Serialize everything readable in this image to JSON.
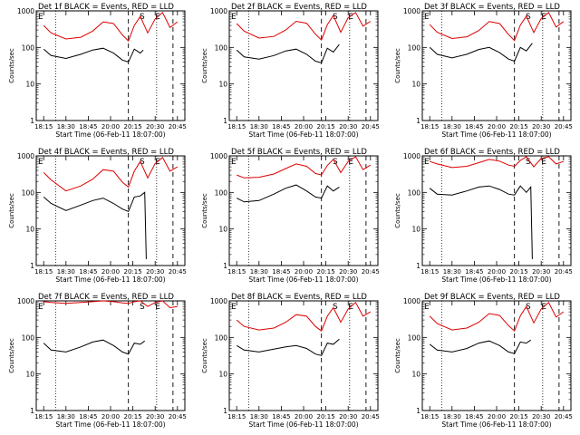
{
  "figure": {
    "ylabel": "Counts/sec",
    "xlabel": "Start Time (06-Feb-11 18:07:00)",
    "y_ticks": [
      "1",
      "10",
      "100",
      "1000"
    ],
    "x_ticks": [
      "18:15",
      "18:30",
      "18:45",
      "20:00",
      "20:15",
      "20:30",
      "20:45"
    ],
    "markers": {
      "E": "E",
      "S": "S"
    },
    "colors": {
      "events": "#000000",
      "lld": "#dd0000"
    }
  },
  "chart_data": [
    {
      "type": "line",
      "title": "Det 1f BLACK = Events, RED = LLD",
      "ylim": [
        1,
        1000
      ],
      "yscale": "log",
      "series": [
        {
          "name": "BLACK = Events",
          "color": "#000000",
          "x": [
            0.05,
            0.1,
            0.2,
            0.3,
            0.38,
            0.45,
            0.52,
            0.58,
            0.62,
            0.66,
            0.7,
            0.72
          ],
          "y": [
            90,
            60,
            50,
            65,
            85,
            95,
            70,
            45,
            40,
            90,
            70,
            85
          ]
        },
        {
          "name": "RED = LLD",
          "color": "#dd0000",
          "x": [
            0.05,
            0.1,
            0.2,
            0.3,
            0.38,
            0.45,
            0.52,
            0.58,
            0.62,
            0.66,
            0.7,
            0.75,
            0.8,
            0.85,
            0.9,
            0.95
          ],
          "y": [
            400,
            250,
            170,
            190,
            280,
            500,
            450,
            220,
            150,
            400,
            700,
            250,
            600,
            900,
            350,
            500
          ]
        }
      ]
    },
    {
      "type": "line",
      "title": "Det 2f BLACK = Events, RED = LLD",
      "ylim": [
        1,
        1000
      ],
      "yscale": "log",
      "series": [
        {
          "name": "BLACK = Events",
          "color": "#000000",
          "x": [
            0.05,
            0.1,
            0.2,
            0.3,
            0.38,
            0.45,
            0.52,
            0.58,
            0.62,
            0.66,
            0.7,
            0.74
          ],
          "y": [
            85,
            55,
            48,
            60,
            80,
            90,
            65,
            42,
            38,
            95,
            75,
            120
          ]
        },
        {
          "name": "RED = LLD",
          "color": "#dd0000",
          "x": [
            0.05,
            0.1,
            0.2,
            0.3,
            0.38,
            0.45,
            0.52,
            0.58,
            0.62,
            0.66,
            0.7,
            0.75,
            0.8,
            0.85,
            0.9,
            0.95
          ],
          "y": [
            450,
            280,
            180,
            200,
            300,
            520,
            460,
            230,
            160,
            420,
            750,
            260,
            650,
            900,
            380,
            520
          ]
        }
      ]
    },
    {
      "type": "line",
      "title": "Det 3f BLACK = Events, RED = LLD",
      "ylim": [
        1,
        1000
      ],
      "yscale": "log",
      "series": [
        {
          "name": "BLACK = Events",
          "color": "#000000",
          "x": [
            0.05,
            0.1,
            0.2,
            0.3,
            0.38,
            0.45,
            0.52,
            0.58,
            0.62,
            0.66,
            0.7,
            0.74
          ],
          "y": [
            100,
            65,
            52,
            65,
            88,
            100,
            72,
            48,
            42,
            100,
            80,
            130
          ]
        },
        {
          "name": "RED = LLD",
          "color": "#dd0000",
          "x": [
            0.05,
            0.1,
            0.2,
            0.3,
            0.38,
            0.45,
            0.52,
            0.58,
            0.62,
            0.66,
            0.7,
            0.75,
            0.8,
            0.85,
            0.9,
            0.95
          ],
          "y": [
            420,
            260,
            175,
            195,
            290,
            510,
            450,
            225,
            155,
            410,
            720,
            255,
            620,
            900,
            360,
            510
          ]
        }
      ]
    },
    {
      "type": "line",
      "title": "Det 4f BLACK = Events, RED = LLD",
      "ylim": [
        1,
        1000
      ],
      "yscale": "log",
      "series": [
        {
          "name": "BLACK = Events",
          "color": "#000000",
          "x": [
            0.05,
            0.1,
            0.2,
            0.3,
            0.38,
            0.45,
            0.52,
            0.58,
            0.62,
            0.66,
            0.7,
            0.73,
            0.74
          ],
          "y": [
            75,
            50,
            32,
            45,
            60,
            70,
            50,
            35,
            30,
            75,
            80,
            100,
            1.5
          ]
        },
        {
          "name": "RED = LLD",
          "color": "#dd0000",
          "x": [
            0.05,
            0.1,
            0.2,
            0.3,
            0.38,
            0.45,
            0.52,
            0.58,
            0.62,
            0.66,
            0.7,
            0.75,
            0.8,
            0.85,
            0.9,
            0.95
          ],
          "y": [
            350,
            220,
            110,
            150,
            230,
            420,
            380,
            190,
            140,
            380,
            700,
            250,
            620,
            900,
            380,
            500
          ]
        }
      ]
    },
    {
      "type": "line",
      "title": "Det 5f BLACK = Events, RED = LLD",
      "ylim": [
        1,
        1000
      ],
      "yscale": "log",
      "series": [
        {
          "name": "BLACK = Events",
          "color": "#000000",
          "x": [
            0.05,
            0.1,
            0.2,
            0.3,
            0.38,
            0.45,
            0.52,
            0.58,
            0.62,
            0.66,
            0.7,
            0.74
          ],
          "y": [
            70,
            55,
            60,
            90,
            130,
            160,
            110,
            75,
            70,
            150,
            110,
            140
          ]
        },
        {
          "name": "RED = LLD",
          "color": "#dd0000",
          "x": [
            0.05,
            0.1,
            0.2,
            0.3,
            0.38,
            0.45,
            0.52,
            0.58,
            0.62,
            0.66,
            0.7,
            0.75,
            0.8,
            0.85,
            0.9,
            0.95
          ],
          "y": [
            300,
            250,
            260,
            320,
            450,
            600,
            520,
            330,
            300,
            550,
            800,
            350,
            700,
            950,
            420,
            560
          ]
        }
      ]
    },
    {
      "type": "line",
      "title": "Det 6f BLACK = Events, RED = LLD",
      "ylim": [
        1,
        1000
      ],
      "yscale": "log",
      "series": [
        {
          "name": "BLACK = Events",
          "color": "#000000",
          "x": [
            0.05,
            0.1,
            0.2,
            0.3,
            0.38,
            0.45,
            0.52,
            0.58,
            0.62,
            0.66,
            0.7,
            0.73,
            0.74
          ],
          "y": [
            130,
            90,
            85,
            110,
            140,
            150,
            120,
            90,
            85,
            150,
            100,
            140,
            1.5
          ]
        },
        {
          "name": "RED = LLD",
          "color": "#dd0000",
          "x": [
            0.05,
            0.1,
            0.2,
            0.3,
            0.38,
            0.45,
            0.52,
            0.58,
            0.62,
            0.66,
            0.7,
            0.75,
            0.8,
            0.85,
            0.9,
            0.95
          ],
          "y": [
            700,
            600,
            480,
            520,
            650,
            800,
            720,
            560,
            520,
            750,
            950,
            500,
            850,
            950,
            600,
            700
          ]
        }
      ]
    },
    {
      "type": "line",
      "title": "Det 7f BLACK = Events, RED = LLD",
      "ylim": [
        1,
        1000
      ],
      "yscale": "log",
      "series": [
        {
          "name": "BLACK = Events",
          "color": "#000000",
          "x": [
            0.05,
            0.1,
            0.2,
            0.3,
            0.38,
            0.45,
            0.52,
            0.58,
            0.62,
            0.66,
            0.7,
            0.73
          ],
          "y": [
            70,
            45,
            40,
            55,
            75,
            85,
            60,
            40,
            35,
            70,
            65,
            80
          ]
        },
        {
          "name": "RED = LLD",
          "color": "#dd0000",
          "x": [
            0.05,
            0.1,
            0.2,
            0.3,
            0.38,
            0.45,
            0.52,
            0.58,
            0.62,
            0.66,
            0.7,
            0.75,
            0.8,
            0.85,
            0.9,
            0.95
          ],
          "y": [
            950,
            900,
            850,
            900,
            950,
            1000,
            950,
            880,
            850,
            950,
            1000,
            700,
            900,
            1000,
            650,
            700
          ]
        }
      ]
    },
    {
      "type": "line",
      "title": "Det 8f BLACK = Events, RED = LLD",
      "ylim": [
        1,
        1000
      ],
      "yscale": "log",
      "series": [
        {
          "name": "BLACK = Events",
          "color": "#000000",
          "x": [
            0.05,
            0.1,
            0.2,
            0.3,
            0.38,
            0.45,
            0.52,
            0.58,
            0.62,
            0.66,
            0.7,
            0.74
          ],
          "y": [
            60,
            45,
            40,
            48,
            55,
            60,
            50,
            35,
            32,
            70,
            65,
            90
          ]
        },
        {
          "name": "RED = LLD",
          "color": "#dd0000",
          "x": [
            0.05,
            0.1,
            0.2,
            0.3,
            0.38,
            0.45,
            0.52,
            0.58,
            0.62,
            0.66,
            0.7,
            0.75,
            0.8,
            0.85,
            0.9,
            0.95
          ],
          "y": [
            300,
            200,
            160,
            180,
            260,
            420,
            380,
            200,
            150,
            380,
            650,
            260,
            600,
            900,
            380,
            500
          ]
        }
      ]
    },
    {
      "type": "line",
      "title": "Det 9f BLACK = Events, RED = LLD",
      "ylim": [
        1,
        1000
      ],
      "yscale": "log",
      "series": [
        {
          "name": "BLACK = Events",
          "color": "#000000",
          "x": [
            0.05,
            0.1,
            0.2,
            0.3,
            0.38,
            0.45,
            0.52,
            0.58,
            0.62,
            0.66,
            0.7,
            0.73
          ],
          "y": [
            65,
            45,
            40,
            50,
            70,
            80,
            60,
            40,
            36,
            75,
            70,
            85
          ]
        },
        {
          "name": "RED = LLD",
          "color": "#dd0000",
          "x": [
            0.05,
            0.1,
            0.2,
            0.3,
            0.38,
            0.45,
            0.52,
            0.58,
            0.62,
            0.66,
            0.7,
            0.75,
            0.8,
            0.85,
            0.9,
            0.95
          ],
          "y": [
            380,
            240,
            160,
            180,
            260,
            450,
            400,
            210,
            150,
            390,
            700,
            250,
            600,
            900,
            360,
            500
          ]
        }
      ]
    }
  ]
}
